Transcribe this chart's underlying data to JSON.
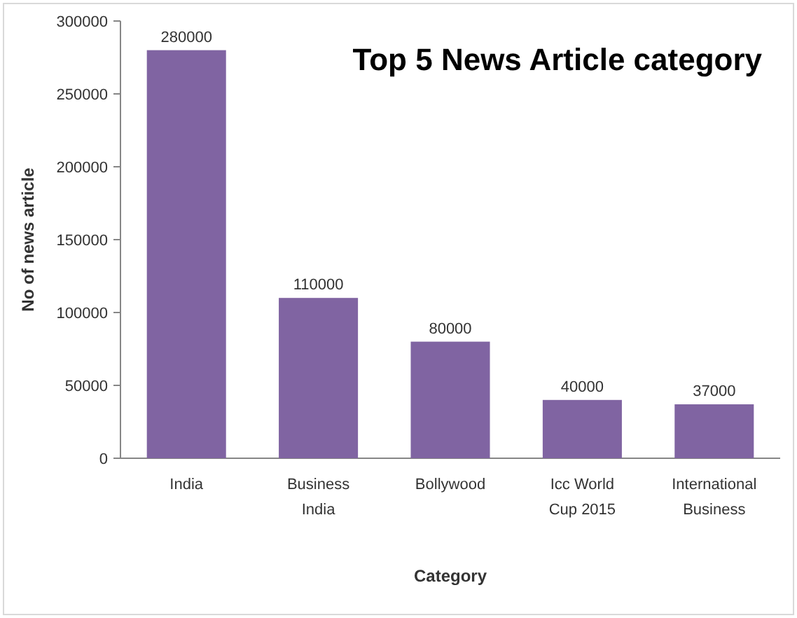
{
  "chart_data": {
    "type": "bar",
    "title": "Top 5 News Article category",
    "xlabel": "Category",
    "ylabel": "No of news article",
    "categories": [
      "India",
      "Business India",
      "Bollywood",
      "Icc World Cup 2015",
      "International Business"
    ],
    "values": [
      280000,
      110000,
      80000,
      40000,
      37000
    ],
    "color": "#8064a2",
    "ylim": [
      0,
      300000
    ],
    "yticks": [
      0,
      50000,
      100000,
      150000,
      200000,
      250000,
      300000
    ],
    "grid": false,
    "data_labels": true
  }
}
